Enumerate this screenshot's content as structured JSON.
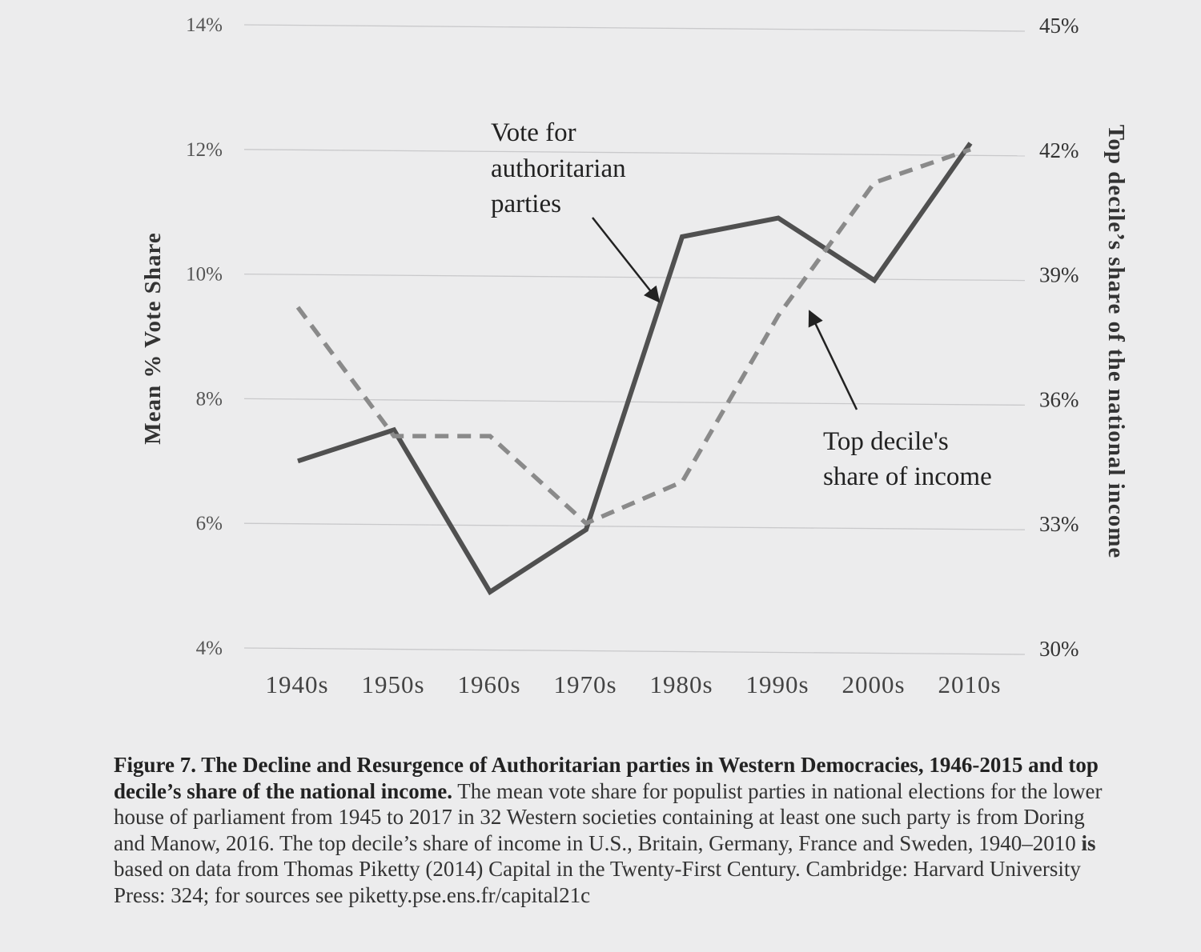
{
  "chart_data": {
    "type": "line",
    "categories": [
      "1940s",
      "1950s",
      "1960s",
      "1970s",
      "1980s",
      "1990s",
      "2000s",
      "2010s"
    ],
    "y_left": {
      "label": "Mean % Vote Share",
      "range": [
        4,
        14
      ],
      "ticks": [
        "4%",
        "6%",
        "8%",
        "10%",
        "12%",
        "14%"
      ],
      "tick_values": [
        4,
        6,
        8,
        10,
        12,
        14
      ]
    },
    "y_right": {
      "label": "Top decile’s share of the national income",
      "range": [
        30,
        45
      ],
      "ticks": [
        "30%",
        "33%",
        "36%",
        "39%",
        "42%",
        "45%"
      ],
      "tick_values": [
        30,
        33,
        36,
        39,
        42,
        45
      ]
    },
    "grid": true,
    "series": [
      {
        "annotation": "Vote for authoritarian parties",
        "axis": "left",
        "style": "solid",
        "color": "#505050",
        "values": [
          7.0,
          7.5,
          4.9,
          5.9,
          10.6,
          10.9,
          9.9,
          12.1
        ]
      },
      {
        "annotation": "Top decile's share of income",
        "axis": "right",
        "style": "dashed",
        "color": "#8a8a8a",
        "values": [
          38.2,
          35.1,
          35.1,
          33.0,
          34.0,
          38.0,
          41.2,
          42.0
        ]
      }
    ],
    "annotations": [
      {
        "lines": [
          "Vote for",
          "authoritarian",
          "parties"
        ]
      },
      {
        "lines": [
          "Top decile's",
          "share of income"
        ]
      }
    ]
  },
  "caption": {
    "title": "Figure 7. The Decline and Resurgence of Authoritarian parties in Western Democracies, 1946-2015 and top decile’s share of the national income.",
    "text_1": " The mean vote share for populist parties in national elections for the lower house of parliament from 1945 to 2017 in 32 Western societies containing at least one such party is from Doring and Manow, 2016.  The  top decile’s share of income in U.S., Britain, Germany, France and Sweden, 1940–2010 ",
    "bold_word": "is",
    "text_2": " based on data from Thomas Piketty (2014) Capital in the Twenty-First Century. Cambridge: Harvard University Press: 324; for sources see piketty.pse.ens.fr/capital21c"
  }
}
